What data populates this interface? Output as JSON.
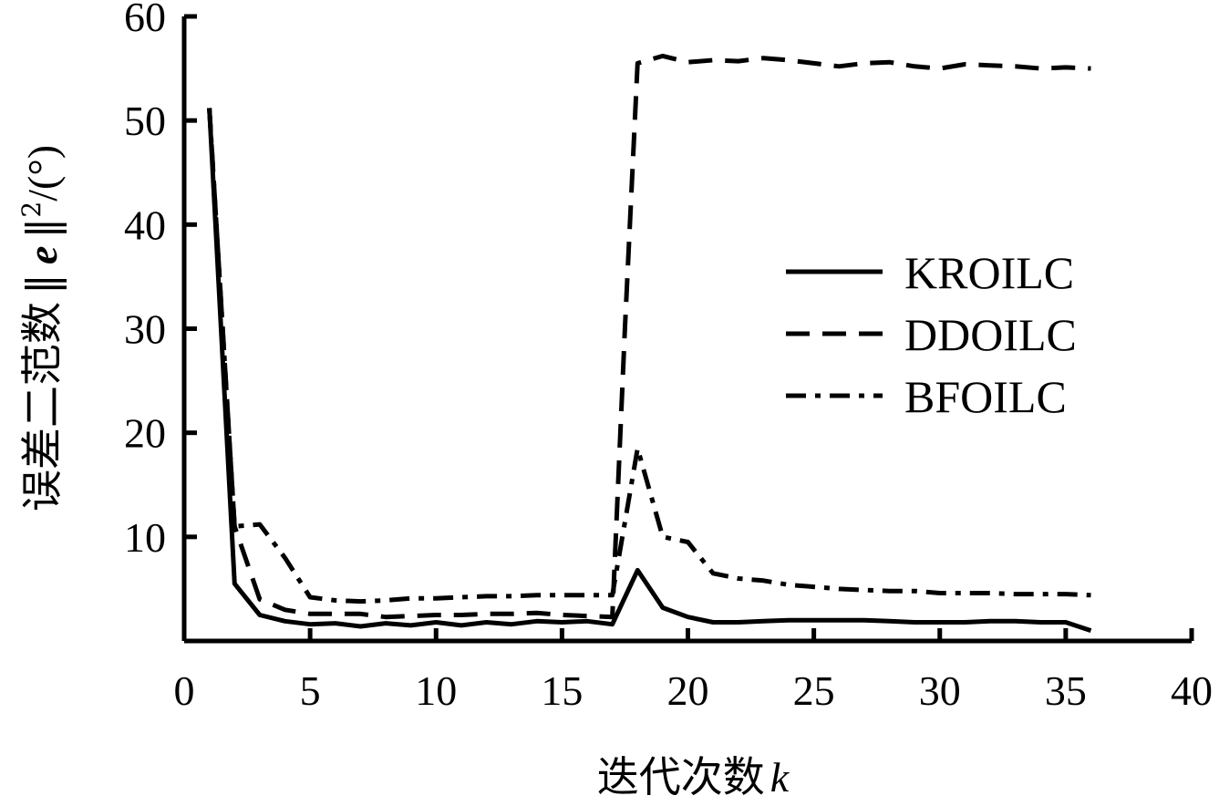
{
  "chart_data": {
    "type": "line",
    "title": "",
    "xlabel": "迭代次数",
    "xlabel_var": "k",
    "ylabel": "误差二范数",
    "ylabel_norm": "‖",
    "ylabel_var": "e",
    "ylabel_norm_close": "‖",
    "ylabel_sup": "2",
    "ylabel_unit": "/(°)",
    "xlim": [
      0,
      40
    ],
    "ylim": [
      0,
      60
    ],
    "xticks": [
      0,
      5,
      10,
      15,
      20,
      25,
      30,
      35,
      40
    ],
    "yticks": [
      0,
      10,
      20,
      30,
      40,
      50,
      60
    ],
    "grid": false,
    "legend_position": "right-center",
    "series": [
      {
        "name": "KROILC",
        "style": "solid",
        "color": "#000000",
        "points": [
          [
            1,
            51.2
          ],
          [
            2,
            5.5
          ],
          [
            3,
            2.5
          ],
          [
            4,
            1.9
          ],
          [
            5,
            1.6
          ],
          [
            6,
            1.7
          ],
          [
            7,
            1.4
          ],
          [
            8,
            1.7
          ],
          [
            9,
            1.5
          ],
          [
            10,
            1.8
          ],
          [
            11,
            1.5
          ],
          [
            12,
            1.8
          ],
          [
            13,
            1.6
          ],
          [
            14,
            1.9
          ],
          [
            15,
            1.8
          ],
          [
            16,
            1.9
          ],
          [
            17,
            1.6
          ],
          [
            18,
            6.8
          ],
          [
            19,
            3.2
          ],
          [
            20,
            2.3
          ],
          [
            21,
            1.8
          ],
          [
            22,
            1.8
          ],
          [
            23,
            1.9
          ],
          [
            24,
            2.0
          ],
          [
            25,
            2.0
          ],
          [
            26,
            2.0
          ],
          [
            27,
            2.0
          ],
          [
            28,
            1.9
          ],
          [
            29,
            1.8
          ],
          [
            30,
            1.8
          ],
          [
            31,
            1.8
          ],
          [
            32,
            1.9
          ],
          [
            33,
            1.9
          ],
          [
            34,
            1.8
          ],
          [
            35,
            1.8
          ],
          [
            36,
            1.0
          ]
        ]
      },
      {
        "name": "DDOILC",
        "style": "dashed",
        "color": "#000000",
        "points": [
          [
            1,
            51.2
          ],
          [
            2,
            11.0
          ],
          [
            3,
            4.0
          ],
          [
            4,
            3.0
          ],
          [
            5,
            2.6
          ],
          [
            6,
            2.6
          ],
          [
            7,
            2.6
          ],
          [
            8,
            2.3
          ],
          [
            9,
            2.4
          ],
          [
            10,
            2.5
          ],
          [
            11,
            2.5
          ],
          [
            12,
            2.6
          ],
          [
            13,
            2.6
          ],
          [
            14,
            2.7
          ],
          [
            15,
            2.5
          ],
          [
            16,
            2.4
          ],
          [
            17,
            2.3
          ],
          [
            17.5,
            30.0
          ],
          [
            18,
            55.5
          ],
          [
            19,
            56.2
          ],
          [
            20,
            55.6
          ],
          [
            21,
            55.8
          ],
          [
            22,
            55.7
          ],
          [
            23,
            56.0
          ],
          [
            24,
            55.8
          ],
          [
            25,
            55.5
          ],
          [
            26,
            55.2
          ],
          [
            27,
            55.5
          ],
          [
            28,
            55.6
          ],
          [
            29,
            55.2
          ],
          [
            30,
            55.0
          ],
          [
            31,
            55.4
          ],
          [
            32,
            55.3
          ],
          [
            33,
            55.2
          ],
          [
            34,
            55.0
          ],
          [
            35,
            55.1
          ],
          [
            36,
            55.0
          ]
        ]
      },
      {
        "name": "BFOILC",
        "style": "dashdot",
        "color": "#000000",
        "points": [
          [
            1,
            51.2
          ],
          [
            2,
            11.0
          ],
          [
            3,
            11.2
          ],
          [
            4,
            8.0
          ],
          [
            5,
            4.2
          ],
          [
            6,
            3.9
          ],
          [
            7,
            3.8
          ],
          [
            8,
            3.9
          ],
          [
            9,
            4.1
          ],
          [
            10,
            4.1
          ],
          [
            11,
            4.2
          ],
          [
            12,
            4.3
          ],
          [
            13,
            4.3
          ],
          [
            14,
            4.4
          ],
          [
            15,
            4.4
          ],
          [
            16,
            4.4
          ],
          [
            17,
            4.4
          ],
          [
            18,
            18.5
          ],
          [
            19,
            10.0
          ],
          [
            20,
            9.5
          ],
          [
            21,
            6.5
          ],
          [
            22,
            6.0
          ],
          [
            23,
            5.8
          ],
          [
            24,
            5.4
          ],
          [
            25,
            5.2
          ],
          [
            26,
            5.0
          ],
          [
            27,
            4.9
          ],
          [
            28,
            4.8
          ],
          [
            29,
            4.8
          ],
          [
            30,
            4.6
          ],
          [
            31,
            4.6
          ],
          [
            32,
            4.6
          ],
          [
            33,
            4.5
          ],
          [
            34,
            4.5
          ],
          [
            35,
            4.5
          ],
          [
            36,
            4.4
          ]
        ]
      }
    ]
  }
}
